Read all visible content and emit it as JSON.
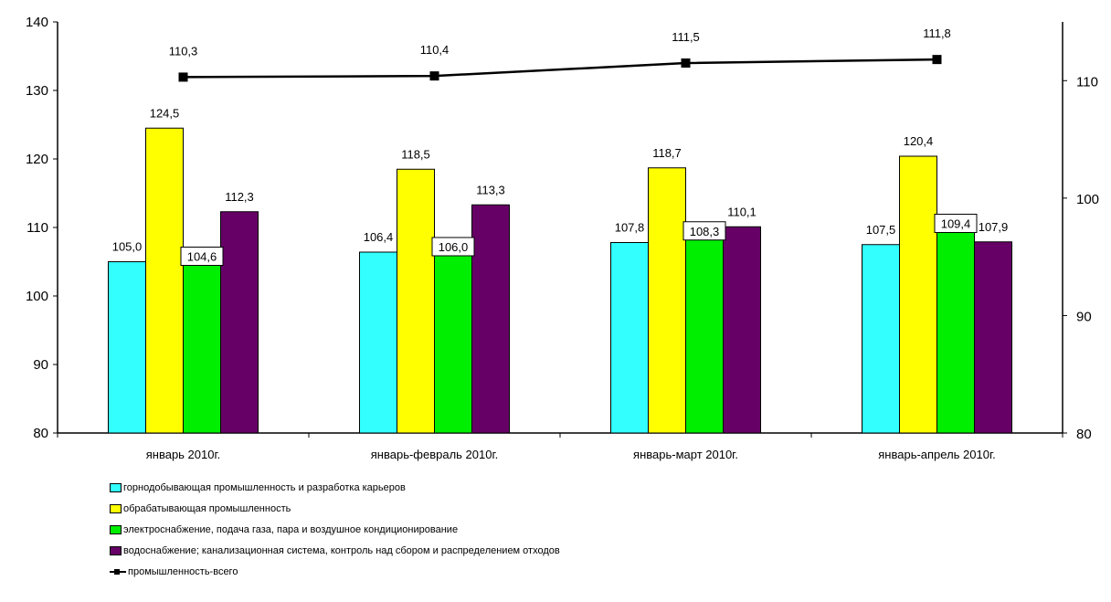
{
  "chart_data": {
    "type": "bar",
    "categories": [
      "январь 2010г.",
      "январь-февраль 2010г.",
      "январь-март 2010г.",
      "январь-апрель 2010г."
    ],
    "series": [
      {
        "name": "горнодобывающая промышленность и разработка карьеров",
        "color": "#33FFFF",
        "values": [
          105.0,
          106.4,
          107.8,
          107.5
        ],
        "labels": [
          "105,0",
          "106,4",
          "107,8",
          "107,5"
        ]
      },
      {
        "name": "обрабатывающая промышленность",
        "color": "#FFFF00",
        "values": [
          124.5,
          118.5,
          118.7,
          120.4
        ],
        "labels": [
          "124,5",
          "118,5",
          "118,7",
          "120,4"
        ]
      },
      {
        "name": "электроснабжение, подача газа, пара и воздушное кондиционирование",
        "color": "#00EE00",
        "values": [
          104.6,
          106.0,
          108.3,
          109.4
        ],
        "labels": [
          "104,6",
          "106,0",
          "108,3",
          "109,4"
        ],
        "boxed_labels": true
      },
      {
        "name": "водоснабжение; канализационная система, контроль над сбором и распределением отходов",
        "color": "#660066",
        "values": [
          112.3,
          113.3,
          110.1,
          107.9
        ],
        "labels": [
          "112,3",
          "113,3",
          "110,1",
          "107,9"
        ]
      }
    ],
    "line_series": {
      "name": "промышленность-всего",
      "axis": "right",
      "color": "#000000",
      "values": [
        110.3,
        110.4,
        111.5,
        111.8
      ],
      "labels": [
        "110,3",
        "110,4",
        "111,5",
        "111,8"
      ]
    },
    "left_axis": {
      "ylim": [
        80,
        140
      ],
      "ticks": [
        "80",
        "90",
        "100",
        "110",
        "120",
        "130",
        "140"
      ]
    },
    "right_axis": {
      "ylim": [
        80,
        115
      ],
      "ticks": [
        "80",
        "90",
        "100",
        "110"
      ]
    },
    "grid": false,
    "legend_position": "bottom-left"
  }
}
